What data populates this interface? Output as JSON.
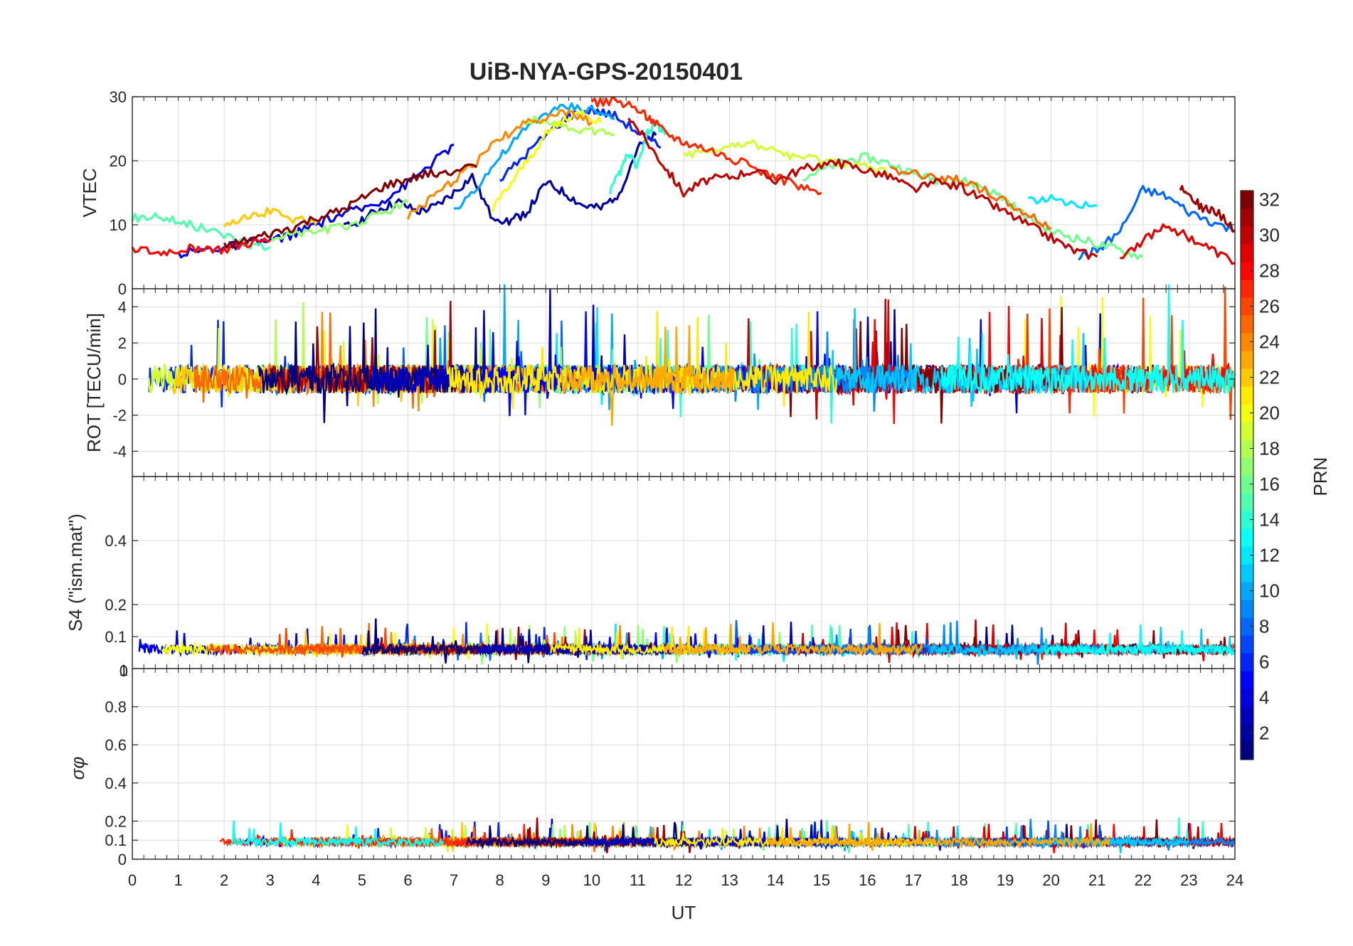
{
  "chart_data": {
    "type": "line",
    "title": "UiB-NYA-GPS-20150401",
    "xlabel": "UT",
    "xlim": [
      0,
      24
    ],
    "xticks": [
      0,
      1,
      2,
      3,
      4,
      5,
      6,
      7,
      8,
      9,
      10,
      11,
      12,
      13,
      14,
      15,
      16,
      17,
      18,
      19,
      20,
      21,
      22,
      23,
      24
    ],
    "panels": [
      {
        "id": "vtec",
        "ylabel": "VTEC",
        "ylim": [
          0,
          30
        ],
        "yticks": [
          0,
          10,
          20,
          30
        ],
        "series": [
          {
            "prn": 2,
            "x": [
              4.6,
              5.0,
              5.4,
              5.8,
              6.2,
              6.6,
              7.0,
              7.4,
              7.8,
              8.2,
              8.6,
              9.0,
              9.4,
              9.8,
              10.2,
              10.6,
              11.0,
              11.4
            ],
            "y": [
              9.5,
              10.8,
              12.5,
              13.5,
              12.0,
              12.8,
              15.0,
              17.5,
              11.5,
              10.5,
              12.0,
              16.5,
              15.0,
              13.0,
              12.5,
              15.0,
              22.0,
              24.0
            ]
          },
          {
            "prn": 4,
            "x": [
              1.0,
              1.5,
              2.0,
              2.5,
              3.0,
              3.5,
              4.0,
              4.5,
              5.0,
              5.5,
              6.0,
              6.5,
              7.0
            ],
            "y": [
              5.5,
              6.0,
              6.5,
              7.0,
              7.5,
              8.5,
              10.0,
              11.5,
              12.5,
              14.0,
              16.5,
              19.5,
              22.5
            ]
          },
          {
            "prn": 6,
            "x": [
              8.0,
              8.5,
              9.0,
              9.5,
              10.0,
              10.5,
              11.0,
              11.5
            ],
            "y": [
              17.0,
              20.5,
              24.0,
              27.0,
              28.0,
              27.0,
              24.5,
              22.0
            ]
          },
          {
            "prn": 8,
            "x": [
              20.6,
              21.0,
              21.5,
              22.0,
              22.5,
              23.0,
              23.5,
              24.0
            ],
            "y": [
              5.0,
              6.0,
              9.0,
              15.5,
              14.5,
              12.0,
              10.5,
              9.0
            ]
          },
          {
            "prn": 10,
            "x": [
              7.0,
              7.5,
              8.0,
              8.5,
              9.0,
              9.5,
              10.0,
              10.5
            ],
            "y": [
              12.0,
              16.0,
              20.5,
              24.5,
              27.5,
              28.5,
              28.0,
              26.5
            ]
          },
          {
            "prn": 12,
            "x": [
              19.5,
              20.0,
              20.5,
              21.0
            ],
            "y": [
              14.0,
              14.0,
              13.5,
              13.0
            ]
          },
          {
            "prn": 14,
            "x": [
              10.4,
              10.6,
              10.8,
              11.0,
              11.2,
              11.4,
              11.6
            ],
            "y": [
              15.0,
              18.0,
              21.0,
              19.0,
              24.0,
              26.0,
              24.0
            ]
          },
          {
            "prn": 15,
            "x": [
              0.0,
              0.5,
              1.0,
              1.5,
              2.0,
              2.5,
              3.0
            ],
            "y": [
              11.0,
              11.5,
              10.5,
              9.5,
              8.5,
              7.0,
              6.5
            ]
          },
          {
            "prn": 16,
            "x": [
              14.6,
              15.0,
              15.5,
              16.0,
              16.5,
              17.0,
              17.5,
              18.0,
              18.5,
              19.0,
              19.5,
              20.0,
              20.5,
              21.0,
              21.5,
              22.0
            ],
            "y": [
              17.5,
              18.5,
              20.0,
              20.5,
              19.5,
              18.0,
              17.0,
              17.0,
              16.0,
              14.0,
              11.0,
              9.0,
              8.0,
              7.0,
              6.0,
              5.0
            ]
          },
          {
            "prn": 17,
            "x": [
              3.0,
              3.5,
              4.0,
              4.5,
              5.0,
              5.5,
              6.0
            ],
            "y": [
              8.0,
              8.5,
              9.0,
              9.5,
              10.5,
              12.0,
              13.5
            ]
          },
          {
            "prn": 18,
            "x": [
              8.5,
              9.0,
              9.5,
              10.0,
              10.5
            ],
            "y": [
              26.0,
              26.5,
              25.0,
              24.5,
              24.0
            ]
          },
          {
            "prn": 19,
            "x": [
              12.0,
              12.5,
              13.0,
              13.5,
              14.0,
              14.5,
              15.0,
              15.5,
              16.0,
              16.5
            ],
            "y": [
              21.0,
              21.5,
              22.5,
              22.5,
              21.5,
              20.5,
              20.0,
              19.5,
              19.0,
              18.0
            ]
          },
          {
            "prn": 20,
            "x": [
              7.8,
              8.2,
              8.6,
              9.0,
              9.4,
              9.8,
              10.2
            ],
            "y": [
              12.0,
              16.0,
              20.0,
              24.0,
              26.5,
              27.5,
              26.0
            ]
          },
          {
            "prn": 22,
            "x": [
              2.0,
              2.5,
              3.0,
              3.5,
              4.0
            ],
            "y": [
              10.0,
              11.5,
              12.0,
              11.0,
              10.0
            ]
          },
          {
            "prn": 24,
            "x": [
              6.0,
              6.5,
              7.0,
              7.5,
              8.0,
              8.5,
              9.0,
              9.5,
              10.0
            ],
            "y": [
              11.5,
              14.0,
              17.0,
              20.0,
              23.5,
              25.5,
              27.0,
              27.5,
              26.0
            ]
          },
          {
            "prn": 25,
            "x": [
              16.5,
              17.0,
              17.5,
              18.0,
              18.5,
              19.0,
              19.5,
              20.0
            ],
            "y": [
              18.5,
              18.0,
              17.5,
              17.0,
              15.5,
              13.5,
              11.5,
              9.5
            ]
          },
          {
            "prn": 27,
            "x": [
              10.0,
              10.5,
              11.0,
              11.3,
              11.6,
              12.0,
              12.5,
              13.0,
              13.5,
              14.0,
              14.5,
              15.0
            ],
            "y": [
              29.0,
              29.5,
              28.0,
              26.5,
              24.5,
              23.0,
              22.0,
              20.5,
              19.0,
              17.5,
              16.0,
              15.0
            ]
          },
          {
            "prn": 28,
            "x": [
              0.0,
              0.5,
              1.0,
              1.5,
              2.0,
              2.5,
              3.0
            ],
            "y": [
              6.5,
              5.5,
              6.0,
              6.5,
              6.0,
              7.0,
              7.5
            ]
          },
          {
            "prn": 29,
            "x": [
              21.5,
              22.0,
              22.5,
              23.0,
              23.5,
              24.0
            ],
            "y": [
              5.0,
              7.5,
              10.0,
              8.0,
              6.0,
              4.0
            ]
          },
          {
            "prn": 30,
            "x": [
              10.8,
              11.2,
              11.6,
              12.0,
              12.5,
              13.0,
              13.5,
              14.0,
              14.5,
              15.0,
              15.5,
              16.0,
              16.5,
              17.0,
              17.5,
              18.0,
              18.5,
              19.0,
              19.5,
              20.0,
              20.5,
              21.0
            ],
            "y": [
              27.0,
              23.0,
              19.0,
              15.0,
              17.0,
              17.5,
              18.5,
              17.0,
              18.5,
              19.5,
              19.5,
              18.5,
              17.5,
              15.5,
              16.5,
              16.0,
              14.0,
              12.0,
              10.0,
              8.0,
              6.0,
              5.0
            ]
          },
          {
            "prn": 32,
            "x": [
              2.0,
              2.5,
              3.0,
              3.5,
              4.0,
              4.5,
              5.0,
              5.5,
              6.0,
              6.5,
              7.0,
              7.5
            ],
            "y": [
              6.5,
              7.5,
              8.5,
              9.5,
              11.0,
              12.0,
              14.0,
              16.0,
              17.0,
              18.0,
              18.5,
              19.0
            ]
          },
          {
            "prn": 31,
            "x": [
              22.8,
              23.0,
              23.3,
              23.6,
              24.0
            ],
            "y": [
              16.0,
              15.0,
              12.5,
              12.0,
              9.0
            ]
          }
        ]
      },
      {
        "id": "rot",
        "ylabel": "ROT [TECU/min]",
        "ylim": [
          -5.4,
          5.0
        ],
        "yticks": [
          -4,
          -2,
          0,
          2,
          4
        ]
      },
      {
        "id": "s4",
        "ylabel": "S4 (\"ism.mat\")",
        "ylim": [
          0,
          0.6
        ],
        "yticks": [
          0.1,
          0.2,
          0.4
        ],
        "extra_tick_label": "0"
      },
      {
        "id": "sigma",
        "ylabel": "σφ",
        "ylim": [
          0,
          1
        ],
        "yticks": [
          0,
          0.1,
          0.2,
          0.4,
          0.6,
          0.8
        ],
        "top_tick_label": "1"
      }
    ],
    "colorbar": {
      "label": "PRN",
      "range": [
        1,
        32
      ],
      "ticks": [
        2,
        4,
        6,
        8,
        10,
        12,
        14,
        16,
        18,
        20,
        22,
        24,
        26,
        28,
        30,
        32
      ]
    }
  }
}
